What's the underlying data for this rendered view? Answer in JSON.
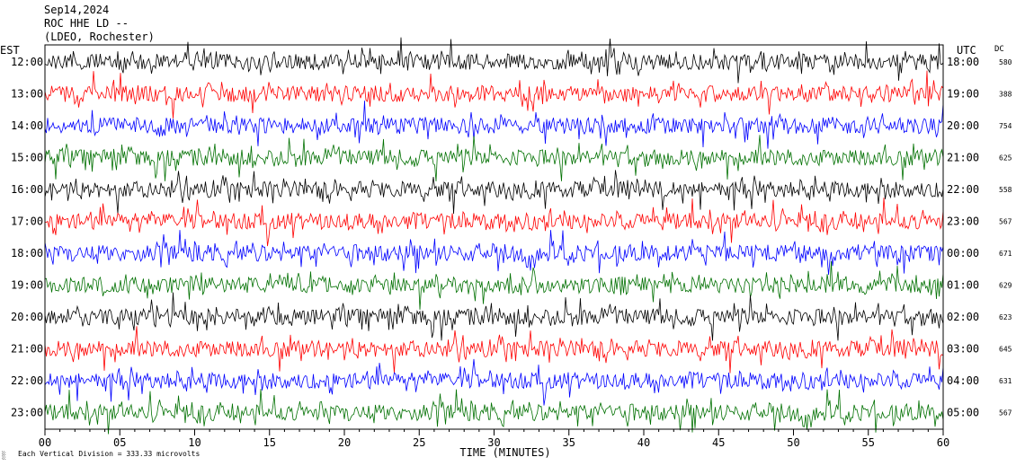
{
  "header": {
    "date": "Sep14,2024",
    "station": "ROC HHE LD --",
    "network": "(LDEO, Rochester)"
  },
  "left_axis_title": "EST",
  "right_axis_title": "UTC",
  "dc_title": "DC",
  "footer": {
    "scale_note": "Each Vertical Division = 333.33 microvolts"
  },
  "chart_data": {
    "type": "line",
    "title": "",
    "xlabel": "TIME (MINUTES)",
    "xlim": [
      0,
      60
    ],
    "x_ticks": [
      "00",
      "05",
      "10",
      "15",
      "20",
      "25",
      "30",
      "35",
      "40",
      "45",
      "50",
      "55",
      "60"
    ],
    "trace_colors": [
      "#000000",
      "#ff0000",
      "#0000ff",
      "#007000"
    ],
    "rows": [
      {
        "est": "12:00",
        "utc": "18:00",
        "dc": "580"
      },
      {
        "est": "13:00",
        "utc": "19:00",
        "dc": "388"
      },
      {
        "est": "14:00",
        "utc": "20:00",
        "dc": "754"
      },
      {
        "est": "15:00",
        "utc": "21:00",
        "dc": "625"
      },
      {
        "est": "16:00",
        "utc": "22:00",
        "dc": "558"
      },
      {
        "est": "17:00",
        "utc": "23:00",
        "dc": "567"
      },
      {
        "est": "18:00",
        "utc": "00:00",
        "dc": "671"
      },
      {
        "est": "19:00",
        "utc": "01:00",
        "dc": "629"
      },
      {
        "est": "20:00",
        "utc": "02:00",
        "dc": "623"
      },
      {
        "est": "21:00",
        "utc": "03:00",
        "dc": "645"
      },
      {
        "est": "22:00",
        "utc": "04:00",
        "dc": "631"
      },
      {
        "est": "23:00",
        "utc": "05:00",
        "dc": "567"
      }
    ]
  }
}
